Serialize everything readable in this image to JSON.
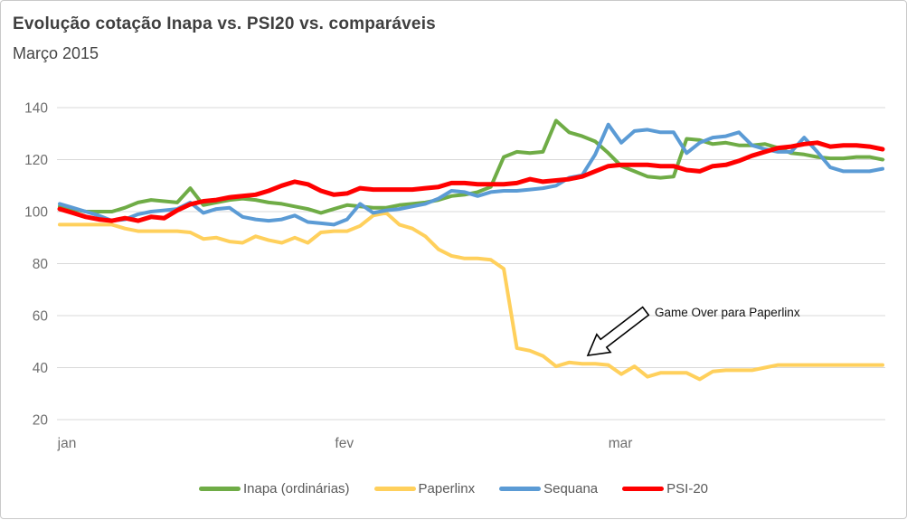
{
  "header": {
    "title": "Evolução cotação Inapa vs. PSI20 vs. comparáveis",
    "subtitle": "Março 2015"
  },
  "colors": {
    "inapa_green": "#6FAC46",
    "paperlinx_yellow": "#FFD05C",
    "sequana_blue": "#5B9BD5",
    "psi20_red": "#FF0000",
    "gridline": "#D9D9D9",
    "axis_text": "#6E6E6E",
    "title_text": "#3F3F3F",
    "legend_text": "#595959"
  },
  "chart_data": {
    "type": "line",
    "title": "Evolução cotação Inapa vs. PSI20 vs. comparáveis",
    "subtitle": "Março 2015",
    "xlabel": "",
    "ylabel": "",
    "ylim": [
      20,
      140
    ],
    "yticks": [
      20,
      40,
      60,
      80,
      100,
      120,
      140
    ],
    "grid": "horizontal",
    "legend_position": "bottom",
    "x_axis": {
      "labels": [
        "jan",
        "fev",
        "mar"
      ],
      "label_day_index": [
        0,
        22,
        43
      ],
      "points_per_series": 64,
      "unit": "index (base 100)"
    },
    "annotation": {
      "text": "Game Over para Paperlinx",
      "arrow_points_to": "Paperlinx line after crash (~41)"
    },
    "series": [
      {
        "name": "Inapa (ordinárias)",
        "color": "#6FAC46",
        "line_width": 4,
        "values": [
          102,
          101,
          100,
          100,
          100,
          101.5,
          103.5,
          104.5,
          104,
          103.5,
          109,
          102.5,
          103.5,
          104.5,
          105,
          104.5,
          103.5,
          103,
          102,
          101,
          99.5,
          101,
          102.5,
          102,
          101.5,
          101.5,
          102.5,
          103,
          103.5,
          104.5,
          106,
          106.5,
          107.5,
          109.5,
          121,
          123,
          122.5,
          123,
          135,
          130.5,
          129,
          127,
          122.5,
          117.5,
          115.5,
          113.5,
          113,
          113.5,
          128,
          127.5,
          126,
          126.5,
          125.5,
          125.5,
          126,
          124.5,
          122.5,
          122,
          121,
          120.5,
          120.5,
          121,
          121,
          120
        ]
      },
      {
        "name": "Paperlinx",
        "color": "#FFD05C",
        "line_width": 4,
        "values": [
          95,
          95,
          95,
          95,
          95,
          93.5,
          92.5,
          92.5,
          92.5,
          92.5,
          92,
          89.5,
          90,
          88.5,
          88,
          90.5,
          89,
          88,
          90,
          88,
          92,
          92.5,
          92.5,
          94.5,
          98.5,
          99.5,
          95,
          93.5,
          90.5,
          85.5,
          83,
          82,
          82,
          81.5,
          78,
          47.5,
          46.5,
          44.5,
          40.5,
          42,
          41.5,
          41.5,
          41,
          37.5,
          40.5,
          36.5,
          38,
          38,
          38,
          35.5,
          38.5,
          39,
          39,
          39,
          40,
          41,
          41,
          41,
          41,
          41,
          41,
          41,
          41,
          41
        ]
      },
      {
        "name": "Sequana",
        "color": "#5B9BD5",
        "line_width": 4,
        "values": [
          103,
          101.5,
          100,
          98.5,
          96.5,
          97,
          99,
          100,
          100.5,
          101,
          103.5,
          99.5,
          101,
          101.5,
          98,
          97,
          96.5,
          97,
          98.5,
          96,
          95.5,
          95,
          97,
          103,
          99.5,
          100.5,
          101,
          102,
          103,
          105,
          108,
          107.5,
          106,
          107.5,
          108,
          108,
          108.5,
          109,
          110,
          113,
          114,
          122,
          133.5,
          126.5,
          131,
          131.5,
          130.5,
          130.5,
          122.5,
          126.5,
          128.5,
          129,
          130.5,
          125.5,
          124,
          123,
          123,
          128.5,
          123,
          117,
          115.5,
          115.5,
          115.5,
          116.5
        ]
      },
      {
        "name": "PSI-20",
        "color": "#FF0000",
        "line_width": 5,
        "values": [
          101,
          99.5,
          98,
          97,
          96.5,
          97.5,
          96.5,
          98,
          97.5,
          100.5,
          102.8,
          104,
          104.5,
          105.5,
          106,
          106.5,
          108,
          110,
          111.5,
          110.5,
          108,
          106.5,
          107,
          109,
          108.5,
          108.5,
          108.5,
          108.5,
          109,
          109.5,
          111,
          111,
          110.5,
          110.5,
          110.5,
          111,
          112.5,
          111.5,
          112,
          112.5,
          113.5,
          115.5,
          117.5,
          118,
          118,
          118,
          117.5,
          117.5,
          116,
          115.5,
          117.5,
          118,
          119.5,
          121.5,
          123,
          124.5,
          125,
          126,
          126.5,
          125,
          125.5,
          125.5,
          125,
          124
        ]
      }
    ]
  }
}
